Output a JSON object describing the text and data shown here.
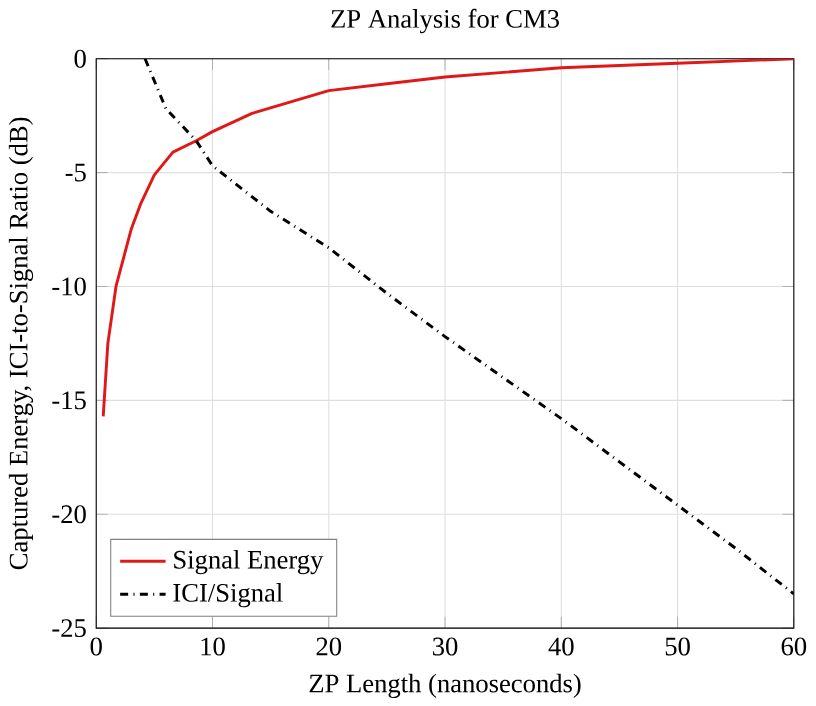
{
  "chart_data": {
    "type": "line",
    "title": "ZP Analysis for CM3",
    "xlabel": "ZP Length (nanoseconds)",
    "ylabel": "Captured Energy, ICI-to-Signal Ratio (dB)",
    "xlim": [
      0,
      60
    ],
    "ylim": [
      -25,
      0
    ],
    "xticks": [
      0,
      10,
      20,
      30,
      40,
      50,
      60
    ],
    "yticks": [
      -25,
      -20,
      -15,
      -10,
      -5,
      0
    ],
    "grid": true,
    "legend": "bottom left",
    "series": [
      {
        "name": "Signal Energy",
        "color": "#e01818",
        "line_style": "solid",
        "x": [
          0.6,
          1,
          1.7,
          3,
          3.8,
          5,
          6.6,
          8.6,
          10,
          13.4,
          20,
          25,
          30,
          40,
          50,
          60
        ],
        "values": [
          -15.7,
          -12.5,
          -10,
          -7.5,
          -6.4,
          -5.1,
          -4.1,
          -3.6,
          -3.2,
          -2.4,
          -1.4,
          -1.1,
          -0.8,
          -0.4,
          -0.2,
          0
        ]
      },
      {
        "name": "ICI/Signal",
        "color": "#000000",
        "line_style": "dashdot",
        "x": [
          4.2,
          6,
          8.6,
          10,
          15,
          20,
          25,
          30,
          35,
          40,
          45,
          50,
          55,
          60
        ],
        "values": [
          0,
          -2.2,
          -3.6,
          -4.7,
          -6.7,
          -8.3,
          -10.3,
          -12.2,
          -14,
          -15.8,
          -17.7,
          -19.6,
          -21.5,
          -23.5
        ]
      }
    ]
  }
}
